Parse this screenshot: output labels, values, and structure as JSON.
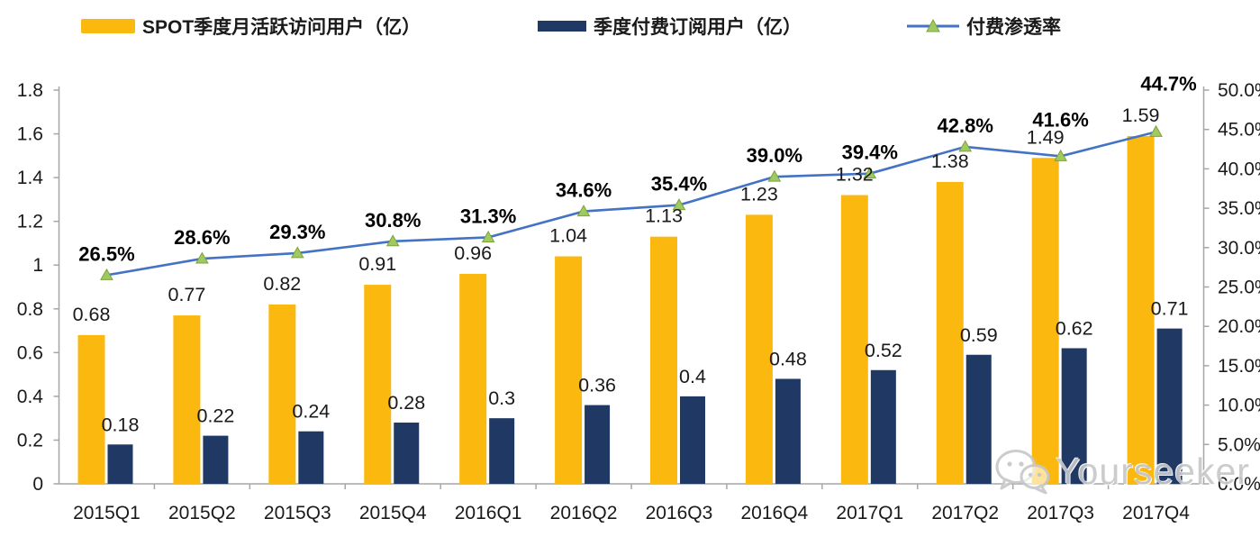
{
  "legend": [
    {
      "label": "SPOT季度月活跃访问用户（亿）",
      "type": "bar",
      "color": "#FBB80F"
    },
    {
      "label": "季度付费订阅用户（亿）",
      "type": "bar",
      "color": "#1F3864"
    },
    {
      "label": "付费渗透率",
      "type": "line",
      "color": "#4472C4",
      "marker_color": "#A0C95F"
    }
  ],
  "chart_data": {
    "type": "bar",
    "subtype": "grouped bars with secondary-axis line",
    "categories": [
      "2015Q1",
      "2015Q2",
      "2015Q3",
      "2015Q4",
      "2016Q1",
      "2016Q2",
      "2016Q3",
      "2016Q4",
      "2017Q1",
      "2017Q2",
      "2017Q3",
      "2017Q4"
    ],
    "series": [
      {
        "name": "SPOT季度月活跃访问用户（亿）",
        "type": "bar",
        "axis": "left",
        "color": "#FBB80F",
        "values": [
          0.68,
          0.77,
          0.82,
          0.91,
          0.96,
          1.04,
          1.13,
          1.23,
          1.32,
          1.38,
          1.49,
          1.59
        ],
        "labels": [
          "0.68",
          "0.77",
          "0.82",
          "0.91",
          "0.96",
          "1.04",
          "1.13",
          "1.23",
          "1.32",
          "1.38",
          "1.49",
          "1.59"
        ]
      },
      {
        "name": "季度付费订阅用户（亿）",
        "type": "bar",
        "axis": "left",
        "color": "#1F3864",
        "values": [
          0.18,
          0.22,
          0.24,
          0.28,
          0.3,
          0.36,
          0.4,
          0.48,
          0.52,
          0.59,
          0.62,
          0.71
        ],
        "labels": [
          "0.18",
          "0.22",
          "0.24",
          "0.28",
          "0.3",
          "0.36",
          "0.4",
          "0.48",
          "0.52",
          "0.59",
          "0.62",
          "0.71"
        ]
      },
      {
        "name": "付费渗透率",
        "type": "line",
        "axis": "right",
        "color": "#4472C4",
        "marker": "triangle",
        "marker_color": "#A0C95F",
        "values": [
          26.5,
          28.6,
          29.3,
          30.8,
          31.3,
          34.6,
          35.4,
          39.0,
          39.4,
          42.8,
          41.6,
          44.7
        ],
        "labels": [
          "26.5%",
          "28.6%",
          "29.3%",
          "30.8%",
          "31.3%",
          "34.6%",
          "35.4%",
          "39.0%",
          "39.4%",
          "42.8%",
          "41.6%",
          "44.7%"
        ]
      }
    ],
    "left_axis": {
      "min": 0,
      "max": 1.8,
      "step": 0.2,
      "ticks": [
        "0",
        "0.2",
        "0.4",
        "0.6",
        "0.8",
        "1",
        "1.2",
        "1.4",
        "1.6",
        "1.8"
      ]
    },
    "right_axis": {
      "min": 0,
      "max": 50,
      "step": 5,
      "ticks": [
        "0.0%",
        "5.0%",
        "10.0%",
        "15.0%",
        "20.0%",
        "25.0%",
        "30.0%",
        "35.0%",
        "40.0%",
        "45.0%",
        "50.0%"
      ]
    },
    "grid": false,
    "legend_position": "top",
    "axis_color": "#A6A6A6",
    "label_color": "#1A1A1A"
  },
  "watermark": {
    "text": "Yourseeker",
    "icon": "wechat-icon",
    "color": "#C6C8CA"
  }
}
